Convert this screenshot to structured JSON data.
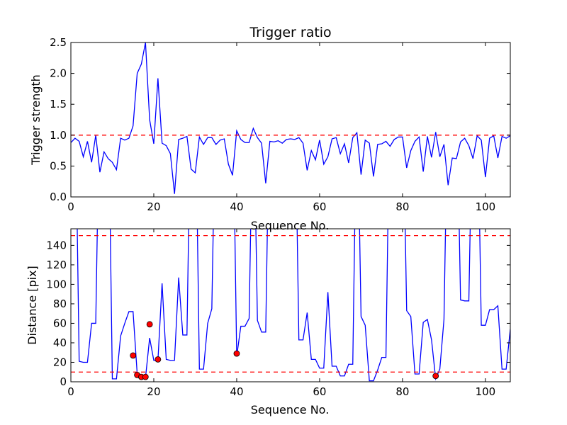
{
  "chart_data": [
    {
      "type": "line",
      "title": "Trigger ratio",
      "xlabel": "Sequence No.",
      "ylabel": "Trigger strength",
      "xlim": [
        0,
        106
      ],
      "ylim": [
        0,
        2.5
      ],
      "xticks": [
        0,
        20,
        40,
        60,
        80,
        100
      ],
      "yticks": [
        0.0,
        0.5,
        1.0,
        1.5,
        2.0,
        2.5
      ],
      "ytick_labels": [
        "0.0",
        "0.5",
        "1.0",
        "1.5",
        "2.0",
        "2.5"
      ],
      "grid": false,
      "line_color": "#0000ff",
      "threshold_color": "#ff0000",
      "thresholds": [
        1.0
      ],
      "series": [
        {
          "values": [
            0.88,
            0.95,
            0.9,
            0.65,
            0.9,
            0.56,
            1.0,
            0.4,
            0.73,
            0.62,
            0.56,
            0.44,
            0.95,
            0.92,
            0.95,
            1.15,
            2.0,
            2.15,
            2.5,
            1.25,
            0.86,
            1.92,
            0.87,
            0.83,
            0.7,
            0.05,
            0.93,
            0.95,
            0.98,
            0.45,
            0.39,
            0.97,
            0.85,
            0.96,
            0.96,
            0.85,
            0.92,
            0.94,
            0.53,
            0.35,
            1.07,
            0.93,
            0.88,
            0.88,
            1.11,
            0.96,
            0.87,
            0.22,
            0.9,
            0.89,
            0.91,
            0.87,
            0.93,
            0.94,
            0.93,
            0.96,
            0.87,
            0.43,
            0.75,
            0.6,
            0.92,
            0.53,
            0.65,
            0.94,
            0.96,
            0.7,
            0.86,
            0.55,
            0.96,
            1.04,
            0.36,
            0.92,
            0.87,
            0.33,
            0.85,
            0.86,
            0.9,
            0.82,
            0.93,
            0.97,
            0.97,
            0.47,
            0.75,
            0.9,
            0.97,
            0.41,
            0.98,
            0.64,
            1.05,
            0.65,
            0.85,
            0.19,
            0.63,
            0.62,
            0.89,
            0.95,
            0.83,
            0.62,
            0.99,
            0.92,
            0.32,
            0.95,
            0.99,
            0.63,
            0.98,
            0.95,
            0.99
          ]
        }
      ]
    },
    {
      "type": "line",
      "title": "",
      "xlabel": "Sequence No.",
      "ylabel": "Distance [pix]",
      "xlim": [
        0,
        106
      ],
      "ylim": [
        0,
        157
      ],
      "xticks": [
        0,
        20,
        40,
        60,
        80,
        100
      ],
      "yticks": [
        0,
        20,
        40,
        60,
        80,
        100,
        120,
        140
      ],
      "ytick_labels": [
        "0",
        "20",
        "40",
        "60",
        "80",
        "100",
        "120",
        "140"
      ],
      "grid": false,
      "line_color": "#0000ff",
      "threshold_color": "#ff0000",
      "marker_color": "#ff0000",
      "thresholds": [
        10,
        150
      ],
      "series": [
        {
          "values": [
            null,
            null,
            21,
            20,
            20,
            60,
            60,
            null,
            null,
            null,
            3,
            3,
            47,
            60,
            72,
            72,
            8,
            6,
            4,
            45,
            22,
            22,
            101,
            23,
            22,
            22,
            107,
            48,
            48,
            null,
            null,
            13,
            13,
            60,
            75,
            null,
            null,
            null,
            null,
            null,
            26,
            57,
            57,
            65,
            null,
            63,
            51,
            51,
            null,
            null,
            null,
            null,
            null,
            null,
            null,
            43,
            43,
            71,
            23,
            23,
            14,
            14,
            92,
            16,
            16,
            6,
            6,
            18,
            18,
            null,
            67,
            58,
            1,
            1,
            12,
            25,
            25,
            null,
            null,
            null,
            null,
            73,
            67,
            8,
            8,
            61,
            64,
            43,
            3,
            13,
            64,
            null,
            null,
            null,
            84,
            83,
            83,
            null,
            null,
            58,
            58,
            74,
            74,
            78,
            13,
            13,
            54
          ]
        }
      ],
      "markers": [
        {
          "x": 15,
          "y": 27
        },
        {
          "x": 16,
          "y": 7
        },
        {
          "x": 17,
          "y": 5
        },
        {
          "x": 18,
          "y": 5
        },
        {
          "x": 19,
          "y": 59
        },
        {
          "x": 21,
          "y": 23
        },
        {
          "x": 40,
          "y": 29
        },
        {
          "x": 88,
          "y": 6
        }
      ]
    }
  ]
}
